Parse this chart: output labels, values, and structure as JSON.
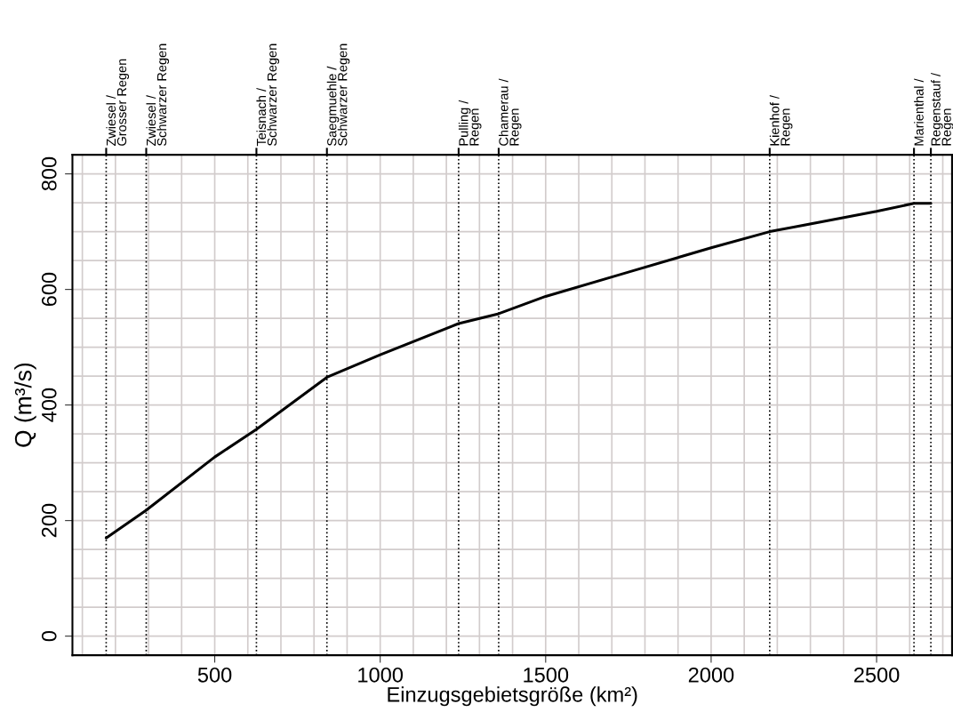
{
  "chart_data": {
    "type": "line",
    "xlabel": "Einzugsgebietsgröße (km²)",
    "ylabel": "Q (m³/s)",
    "x": [
      172,
      293,
      500,
      626,
      839,
      1000,
      1237,
      1358,
      1500,
      1750,
      2000,
      2177,
      2500,
      2613,
      2664
    ],
    "series": [
      {
        "color": "#000000",
        "values": [
          170,
          218,
          310,
          358,
          448,
          487,
          541,
          558,
          588,
          630,
          672,
          700,
          735,
          749,
          749
        ]
      }
    ],
    "xlim": [
      70,
      2728
    ],
    "ylim": [
      -33,
      833
    ],
    "xticks": [
      {
        "value": 100,
        "label": null
      },
      {
        "value": 200,
        "label": null
      },
      {
        "value": 300,
        "label": null
      },
      {
        "value": 400,
        "label": null
      },
      500,
      {
        "value": 600,
        "label": null
      },
      {
        "value": 700,
        "label": null
      },
      {
        "value": 800,
        "label": null
      },
      {
        "value": 900,
        "label": null
      },
      1000,
      {
        "value": 1100,
        "label": null
      },
      {
        "value": 1200,
        "label": null
      },
      {
        "value": 1300,
        "label": null
      },
      {
        "value": 1400,
        "label": null
      },
      1500,
      {
        "value": 1600,
        "label": null
      },
      {
        "value": 1700,
        "label": null
      },
      {
        "value": 1800,
        "label": null
      },
      {
        "value": 1900,
        "label": null
      },
      2000,
      {
        "value": 2100,
        "label": null
      },
      {
        "value": 2200,
        "label": null
      },
      {
        "value": 2300,
        "label": null
      },
      {
        "value": 2400,
        "label": null
      },
      2500,
      {
        "value": 2600,
        "label": null
      },
      {
        "value": 2700,
        "label": null
      }
    ],
    "yticks": [
      0,
      {
        "value": 50,
        "label": null
      },
      {
        "value": 100,
        "label": null
      },
      {
        "value": 150,
        "label": null
      },
      200,
      {
        "value": 250,
        "label": null
      },
      {
        "value": 300,
        "label": null
      },
      {
        "value": 350,
        "label": null
      },
      400,
      {
        "value": 450,
        "label": null
      },
      {
        "value": 500,
        "label": null
      },
      {
        "value": 550,
        "label": null
      },
      600,
      {
        "value": 650,
        "label": null
      },
      {
        "value": 700,
        "label": null
      },
      {
        "value": 750,
        "label": null
      },
      800
    ],
    "grid": true,
    "marker": "none",
    "line_style": "solid",
    "ref_lines": [
      {
        "axis": "x",
        "value": 172,
        "label": "Zwiesel /\nGrosser Regen",
        "color": "#000000",
        "line_style": "dotted"
      },
      {
        "axis": "x",
        "value": 293,
        "label": "Zwiesel /\nSchwarzer Regen",
        "color": "#000000",
        "line_style": "dotted"
      },
      {
        "axis": "x",
        "value": 626,
        "label": "Teisnach /\nSchwarzer Regen",
        "color": "#000000",
        "line_style": "dotted"
      },
      {
        "axis": "x",
        "value": 839,
        "label": "Saegmuehle /\nSchwarzer Regen",
        "color": "#000000",
        "line_style": "dotted"
      },
      {
        "axis": "x",
        "value": 1237,
        "label": "Pulling /\nRegen",
        "color": "#000000",
        "line_style": "dotted"
      },
      {
        "axis": "x",
        "value": 1358,
        "label": "Chamerau /\nRegen",
        "color": "#000000",
        "line_style": "dotted"
      },
      {
        "axis": "x",
        "value": 2177,
        "label": "Kienhof /\nRegen",
        "color": "#000000",
        "line_style": "dotted"
      },
      {
        "axis": "x",
        "value": 2613,
        "label": "Marienthal /",
        "color": "#000000",
        "line_style": "dotted"
      },
      {
        "axis": "x",
        "value": 2664,
        "label": "Regenstauf /\nRegen",
        "color": "#000000",
        "line_style": "dotted"
      }
    ]
  }
}
